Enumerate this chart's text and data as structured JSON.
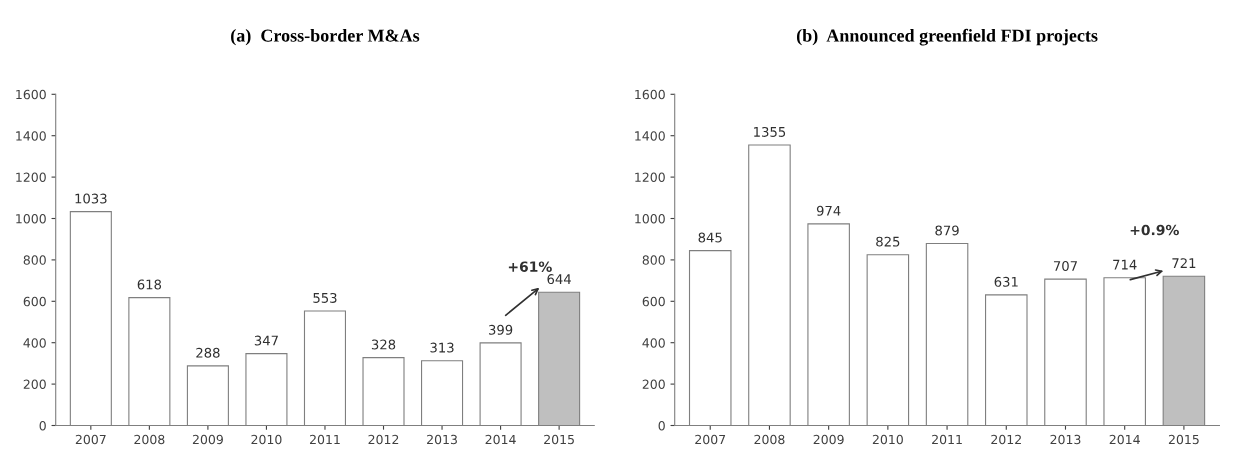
{
  "chart_data": [
    {
      "type": "bar",
      "title": "(a)  Cross-border M&As",
      "categories": [
        "2007",
        "2008",
        "2009",
        "2010",
        "2011",
        "2012",
        "2013",
        "2014",
        "2015"
      ],
      "values": [
        1033,
        618,
        288,
        347,
        553,
        328,
        313,
        399,
        644
      ],
      "colors": [
        "#ffffff",
        "#ffffff",
        "#ffffff",
        "#ffffff",
        "#ffffff",
        "#ffffff",
        "#ffffff",
        "#ffffff",
        "#bfbfbf"
      ],
      "ylim": [
        0,
        1600
      ],
      "yticks": [
        0,
        200,
        400,
        600,
        800,
        1000,
        1200,
        1400,
        1600
      ],
      "data_labels": true,
      "grid": false,
      "annotations": [
        {
          "text": "+61%",
          "x": "2015",
          "y": 644
        }
      ]
    },
    {
      "type": "bar",
      "title": "(b)  Announced greenfield FDI projects",
      "categories": [
        "2007",
        "2008",
        "2009",
        "2010",
        "2011",
        "2012",
        "2013",
        "2014",
        "2015"
      ],
      "values": [
        845,
        1355,
        974,
        825,
        879,
        631,
        707,
        714,
        721
      ],
      "colors": [
        "#ffffff",
        "#ffffff",
        "#ffffff",
        "#ffffff",
        "#ffffff",
        "#ffffff",
        "#ffffff",
        "#ffffff",
        "#bfbfbf"
      ],
      "ylim": [
        0,
        1600
      ],
      "yticks": [
        0,
        200,
        400,
        600,
        800,
        1000,
        1200,
        1400,
        1600
      ],
      "data_labels": true,
      "grid": false,
      "annotations": [
        {
          "text": "+0.9%",
          "x": "2015",
          "y": 721
        }
      ]
    }
  ]
}
